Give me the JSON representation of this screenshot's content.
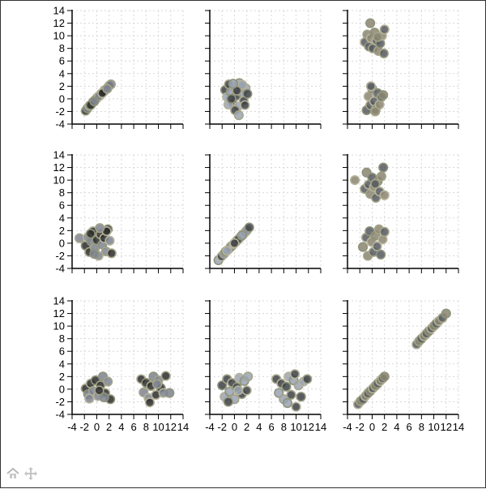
{
  "chart_data": {
    "type": "scatter",
    "layout": "scatter-matrix",
    "rows": 3,
    "cols": 3,
    "xlim": [
      -4,
      14
    ],
    "ylim": [
      -4,
      14
    ],
    "ticks": [
      -4,
      -2,
      0,
      2,
      4,
      6,
      8,
      10,
      12,
      14
    ],
    "tick_labels": [
      "-4",
      "-2",
      "0",
      "2",
      "4",
      "6",
      "8",
      "10",
      "12",
      "14"
    ],
    "grid": true,
    "marker_fill_colors": [
      "#2b2b2b",
      "#3c3f44",
      "#55595f",
      "#7c8290",
      "#9aa3b4",
      "#8a8470"
    ],
    "marker_edge_colors": [
      "#a4a488",
      "#8f947a",
      "#b5b39a"
    ],
    "panels": [
      {
        "row": 0,
        "col": 0,
        "points": [
          [
            -1.8,
            -1.9
          ],
          [
            -1.5,
            -1.5
          ],
          [
            -1.2,
            -1.1
          ],
          [
            -0.9,
            -0.9
          ],
          [
            -0.6,
            -0.5
          ],
          [
            -0.3,
            -0.2
          ],
          [
            0.0,
            0.1
          ],
          [
            0.2,
            0.3
          ],
          [
            0.5,
            0.5
          ],
          [
            0.7,
            0.8
          ],
          [
            1.0,
            1.0
          ],
          [
            1.2,
            1.3
          ],
          [
            1.5,
            1.5
          ],
          [
            1.8,
            1.8
          ],
          [
            2.0,
            2.1
          ],
          [
            2.3,
            2.3
          ],
          [
            -1.0,
            -1.0
          ],
          [
            0.3,
            0.4
          ],
          [
            1.1,
            1.1
          ],
          [
            -0.4,
            -0.4
          ],
          [
            0.9,
            0.9
          ],
          [
            1.7,
            1.6
          ]
        ]
      },
      {
        "row": 0,
        "col": 1,
        "points": [
          [
            -1.5,
            1.4
          ],
          [
            -1.2,
            0.3
          ],
          [
            -0.9,
            2.3
          ],
          [
            -0.6,
            1.1
          ],
          [
            -0.3,
            -0.6
          ],
          [
            0.0,
            1.8
          ],
          [
            0.3,
            0.5
          ],
          [
            0.6,
            -1.2
          ],
          [
            0.9,
            2.0
          ],
          [
            1.2,
            1.0
          ],
          [
            1.5,
            -0.3
          ],
          [
            1.8,
            1.7
          ],
          [
            2.1,
            0.8
          ],
          [
            -1.0,
            -0.9
          ],
          [
            0.1,
            -1.8
          ],
          [
            0.8,
            2.5
          ],
          [
            1.7,
            -1.0
          ],
          [
            0.7,
            -2.6
          ],
          [
            -0.5,
            0.0
          ],
          [
            1.3,
            2.2
          ],
          [
            0.4,
            1.3
          ],
          [
            -0.2,
            2.4
          ]
        ]
      },
      {
        "row": 0,
        "col": 2,
        "points": [
          [
            -1.2,
            9.0
          ],
          [
            -0.8,
            10.2
          ],
          [
            -0.5,
            8.3
          ],
          [
            -0.2,
            9.6
          ],
          [
            0.1,
            8.0
          ],
          [
            0.4,
            10.5
          ],
          [
            0.7,
            9.2
          ],
          [
            1.0,
            7.6
          ],
          [
            1.3,
            8.8
          ],
          [
            1.6,
            10.0
          ],
          [
            1.9,
            7.2
          ],
          [
            -0.3,
            12.0
          ],
          [
            2.0,
            11.0
          ],
          [
            0.9,
            9.8
          ],
          [
            -0.9,
            -1.8
          ],
          [
            -0.6,
            0.4
          ],
          [
            -0.3,
            -1.0
          ],
          [
            0.0,
            1.6
          ],
          [
            0.3,
            -0.4
          ],
          [
            0.6,
            -1.6
          ],
          [
            0.9,
            0.9
          ],
          [
            1.2,
            -0.9
          ],
          [
            1.5,
            0.3
          ],
          [
            1.8,
            0.6
          ],
          [
            -0.2,
            2.0
          ],
          [
            0.5,
            -2.0
          ]
        ]
      },
      {
        "row": 1,
        "col": 0,
        "points": [
          [
            -2.8,
            0.8
          ],
          [
            -1.8,
            -0.4
          ],
          [
            -1.5,
            0.9
          ],
          [
            -1.2,
            -1.4
          ],
          [
            -0.9,
            0.3
          ],
          [
            -0.6,
            1.9
          ],
          [
            -0.3,
            -0.8
          ],
          [
            0.0,
            0.5
          ],
          [
            0.3,
            -2.0
          ],
          [
            0.6,
            1.4
          ],
          [
            0.9,
            -0.2
          ],
          [
            1.2,
            0.8
          ],
          [
            1.5,
            -1.3
          ],
          [
            1.8,
            2.2
          ],
          [
            2.1,
            0.4
          ],
          [
            2.4,
            -1.6
          ],
          [
            -0.4,
            -1.7
          ],
          [
            1.6,
            1.9
          ],
          [
            0.5,
            2.4
          ],
          [
            -1.0,
            1.5
          ]
        ]
      },
      {
        "row": 1,
        "col": 1,
        "points": [
          [
            -2.6,
            -2.7
          ],
          [
            -2.1,
            -2.1
          ],
          [
            -1.7,
            -1.7
          ],
          [
            -1.4,
            -1.3
          ],
          [
            -1.0,
            -1.0
          ],
          [
            -0.7,
            -0.7
          ],
          [
            -0.4,
            -0.4
          ],
          [
            -0.1,
            -0.1
          ],
          [
            0.2,
            0.2
          ],
          [
            0.5,
            0.5
          ],
          [
            0.8,
            0.8
          ],
          [
            1.1,
            1.1
          ],
          [
            1.4,
            1.4
          ],
          [
            1.7,
            1.7
          ],
          [
            2.0,
            2.0
          ],
          [
            2.4,
            2.5
          ],
          [
            -1.2,
            -1.2
          ],
          [
            0.6,
            0.6
          ],
          [
            1.2,
            1.2
          ],
          [
            0.0,
            0.0
          ]
        ]
      },
      {
        "row": 1,
        "col": 2,
        "points": [
          [
            -2.8,
            10.0
          ],
          [
            -1.2,
            8.6
          ],
          [
            -0.9,
            11.2
          ],
          [
            -0.6,
            9.3
          ],
          [
            -0.3,
            7.8
          ],
          [
            0.0,
            10.4
          ],
          [
            0.3,
            8.9
          ],
          [
            0.6,
            7.2
          ],
          [
            0.9,
            9.8
          ],
          [
            1.2,
            8.2
          ],
          [
            1.5,
            10.6
          ],
          [
            1.8,
            12.0
          ],
          [
            2.0,
            7.6
          ],
          [
            0.5,
            9.4
          ],
          [
            -1.5,
            -0.6
          ],
          [
            -1.0,
            0.9
          ],
          [
            -0.7,
            -2.0
          ],
          [
            -0.4,
            1.9
          ],
          [
            -0.1,
            0.2
          ],
          [
            0.2,
            -1.4
          ],
          [
            0.5,
            1.2
          ],
          [
            0.8,
            -0.5
          ],
          [
            1.1,
            2.2
          ],
          [
            1.4,
            -1.8
          ],
          [
            1.7,
            0.6
          ],
          [
            2.0,
            1.8
          ]
        ]
      },
      {
        "row": 2,
        "col": 0,
        "points": [
          [
            -1.8,
            0.1
          ],
          [
            -1.4,
            -0.8
          ],
          [
            -1.0,
            0.9
          ],
          [
            -0.6,
            -0.3
          ],
          [
            -0.2,
            1.4
          ],
          [
            0.2,
            -1.1
          ],
          [
            0.6,
            0.6
          ],
          [
            1.0,
            2.0
          ],
          [
            1.4,
            -0.6
          ],
          [
            1.8,
            1.2
          ],
          [
            2.2,
            -1.6
          ],
          [
            -1.2,
            -1.5
          ],
          [
            0.4,
            -0.2
          ],
          [
            1.2,
            -1.3
          ],
          [
            7.2,
            1.6
          ],
          [
            7.6,
            -0.5
          ],
          [
            8.0,
            1.0
          ],
          [
            8.4,
            -1.4
          ],
          [
            8.8,
            0.5
          ],
          [
            9.2,
            2.0
          ],
          [
            9.6,
            -0.9
          ],
          [
            10.0,
            1.4
          ],
          [
            10.4,
            0.2
          ],
          [
            10.8,
            -0.6
          ],
          [
            11.2,
            2.1
          ],
          [
            11.8,
            -0.6
          ],
          [
            8.6,
            -2.1
          ],
          [
            9.8,
            0.8
          ]
        ]
      },
      {
        "row": 2,
        "col": 1,
        "points": [
          [
            -2.0,
            0.6
          ],
          [
            -1.6,
            -1.2
          ],
          [
            -1.2,
            1.6
          ],
          [
            -0.8,
            -0.4
          ],
          [
            -0.4,
            1.0
          ],
          [
            0.0,
            -1.6
          ],
          [
            0.4,
            0.3
          ],
          [
            0.8,
            1.8
          ],
          [
            1.2,
            -0.8
          ],
          [
            1.6,
            1.3
          ],
          [
            2.0,
            -0.2
          ],
          [
            2.2,
            2.0
          ],
          [
            -1.0,
            -2.0
          ],
          [
            0.6,
            -0.2
          ],
          [
            6.8,
            1.6
          ],
          [
            7.2,
            -0.6
          ],
          [
            7.6,
            0.9
          ],
          [
            8.0,
            -1.6
          ],
          [
            8.4,
            0.4
          ],
          [
            8.8,
            2.0
          ],
          [
            9.2,
            -0.9
          ],
          [
            9.6,
            1.4
          ],
          [
            10.0,
            -2.8
          ],
          [
            10.4,
            0.6
          ],
          [
            10.8,
            -1.2
          ],
          [
            11.2,
            1.2
          ],
          [
            11.8,
            1.6
          ],
          [
            8.6,
            -2.2
          ],
          [
            9.8,
            2.4
          ]
        ]
      },
      {
        "row": 2,
        "col": 2,
        "points": [
          [
            -2.3,
            -2.4
          ],
          [
            -1.9,
            -1.9
          ],
          [
            -1.5,
            -1.6
          ],
          [
            -1.1,
            -1.1
          ],
          [
            -0.7,
            -0.7
          ],
          [
            -0.3,
            -0.3
          ],
          [
            0.1,
            0.1
          ],
          [
            0.5,
            0.5
          ],
          [
            0.9,
            0.9
          ],
          [
            1.3,
            1.3
          ],
          [
            1.7,
            1.7
          ],
          [
            2.0,
            2.0
          ],
          [
            7.2,
            7.1
          ],
          [
            7.6,
            7.6
          ],
          [
            8.0,
            8.0
          ],
          [
            8.4,
            8.4
          ],
          [
            8.8,
            8.8
          ],
          [
            9.2,
            9.2
          ],
          [
            9.6,
            9.6
          ],
          [
            10.0,
            10.0
          ],
          [
            10.4,
            10.4
          ],
          [
            10.8,
            10.8
          ],
          [
            11.4,
            11.3
          ],
          [
            12.0,
            12.0
          ]
        ]
      }
    ]
  }
}
